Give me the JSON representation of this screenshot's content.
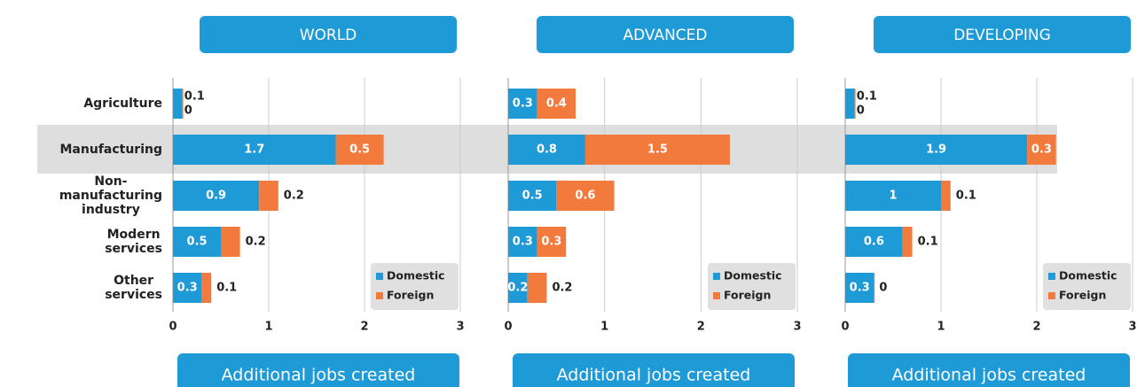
{
  "chart_data": [
    {
      "type": "bar",
      "orientation": "horizontal",
      "stacked": true,
      "title": "WORLD",
      "xlabel": "Additional jobs created",
      "categories": [
        "Agriculture",
        "Manufacturing",
        "Non-manufacturing industry",
        "Modern services",
        "Other services"
      ],
      "series": [
        {
          "name": "Domestic",
          "color": "#1e9ad6",
          "values": [
            0.1,
            1.7,
            0.9,
            0.5,
            0.3
          ]
        },
        {
          "name": "Foreign",
          "color": "#f37a3d",
          "values": [
            0.0,
            0.5,
            0.2,
            0.2,
            0.1
          ]
        }
      ],
      "xlim": [
        0,
        3
      ],
      "xticks": [
        0,
        1,
        2,
        3
      ],
      "grid": true,
      "legend": "lower right"
    },
    {
      "type": "bar",
      "orientation": "horizontal",
      "stacked": true,
      "title": "ADVANCED",
      "xlabel": "Additional jobs created",
      "series": [
        {
          "name": "Domestic",
          "color": "#1e9ad6",
          "values": [
            0.3,
            0.8,
            0.5,
            0.3,
            0.2
          ]
        },
        {
          "name": "Foreign",
          "color": "#f37a3d",
          "values": [
            0.4,
            1.5,
            0.6,
            0.3,
            0.2
          ]
        }
      ],
      "xlim": [
        0,
        3
      ],
      "xticks": [
        0,
        1,
        2,
        3
      ],
      "grid": true,
      "legend": "lower right"
    },
    {
      "type": "bar",
      "orientation": "horizontal",
      "stacked": true,
      "title": "DEVELOPING",
      "xlabel": "Additional jobs created",
      "series": [
        {
          "name": "Domestic",
          "color": "#1e9ad6",
          "values": [
            0.1,
            1.9,
            1.0,
            0.6,
            0.3
          ]
        },
        {
          "name": "Foreign",
          "color": "#f37a3d",
          "values": [
            0.0,
            0.3,
            0.1,
            0.1,
            0.0
          ]
        }
      ],
      "xlim": [
        0,
        3
      ],
      "xticks": [
        0,
        1,
        2,
        3
      ],
      "grid": true,
      "legend": "lower right"
    }
  ]
}
